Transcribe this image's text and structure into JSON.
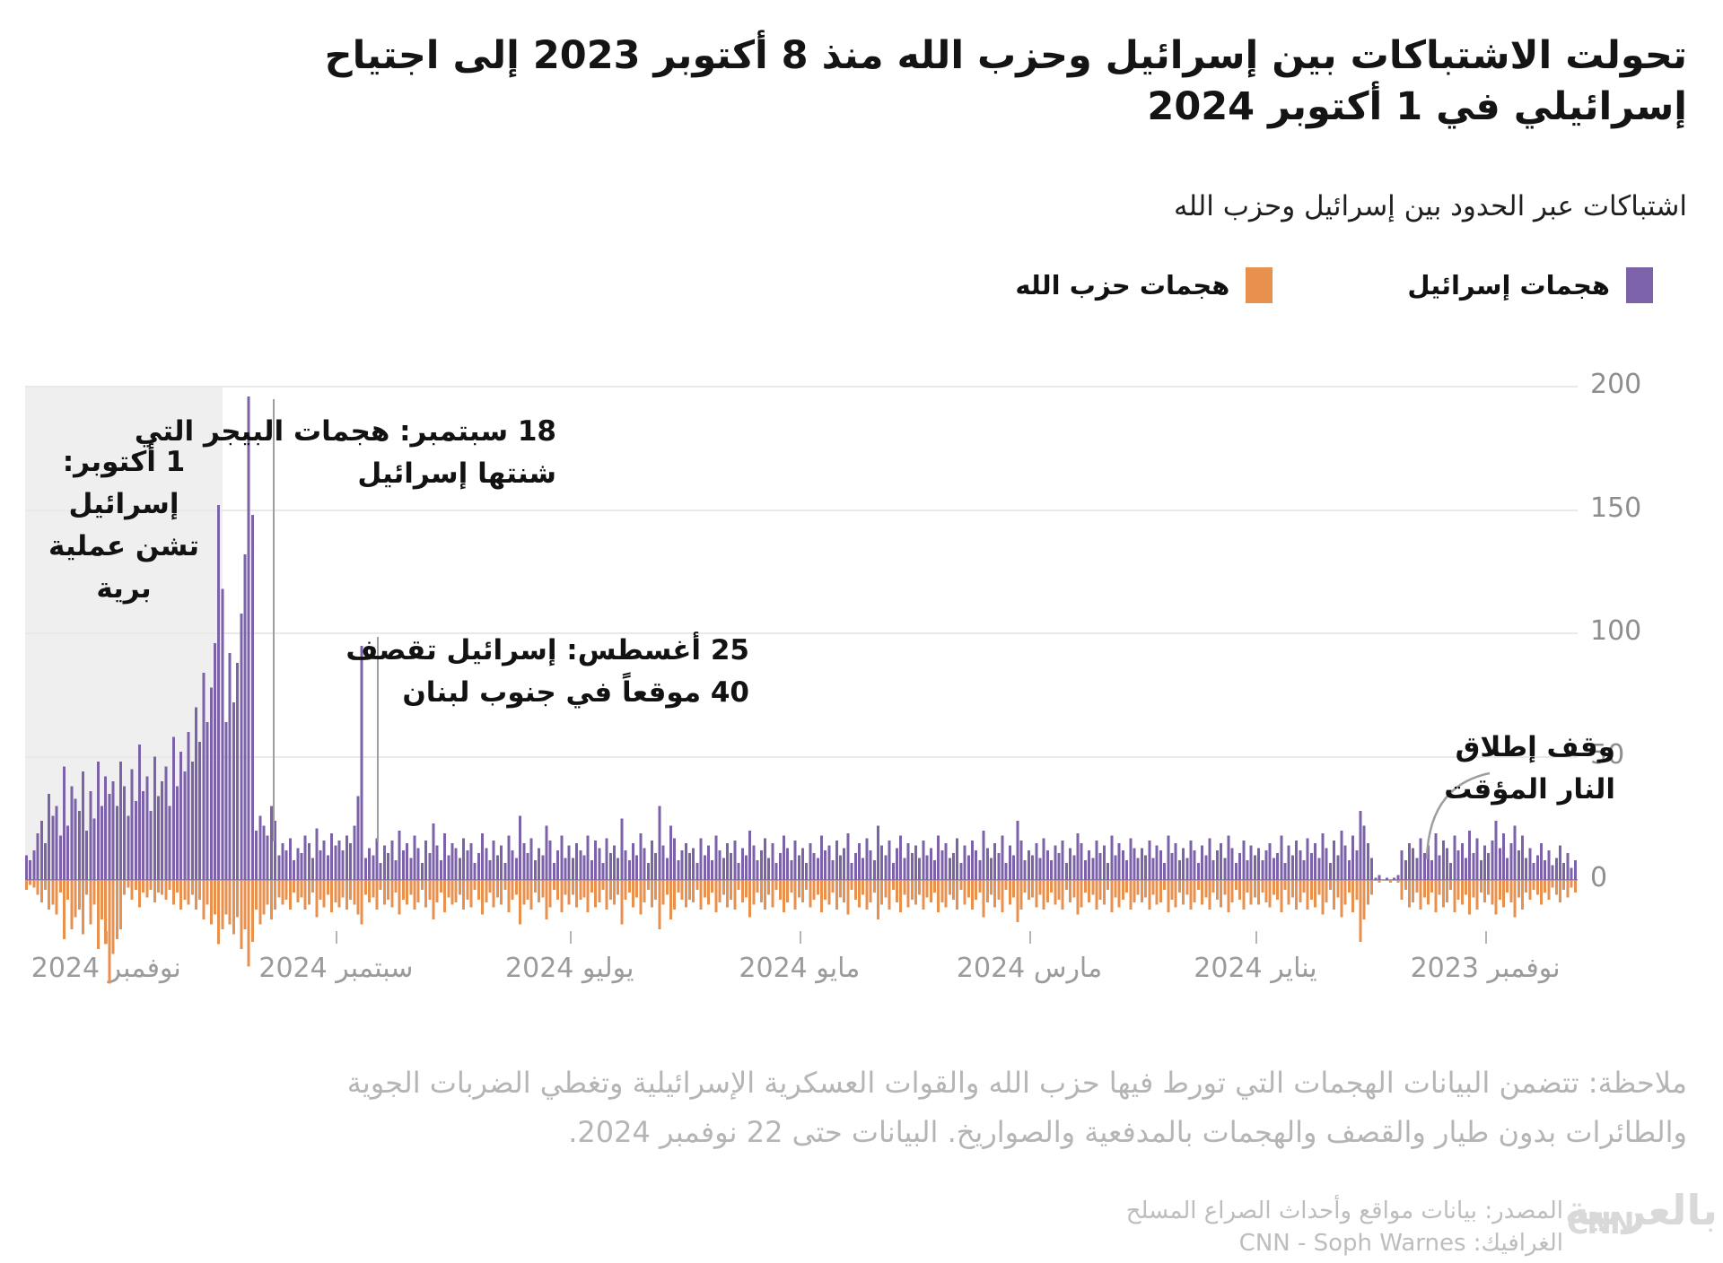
{
  "header": {
    "title_line1": "تحولت الاشتباكات بين إسرائيل وحزب الله منذ 8 أكتوبر 2023 إلى اجتياح",
    "title_line2": "إسرائيلي في 1 أكتوبر 2024",
    "subtitle": "اشتباكات عبر الحدود بين إسرائيل وحزب الله"
  },
  "legend": {
    "israel_label": "هجمات إسرائيل",
    "israel_color": "#7C62A8",
    "hezbollah_label": "هجمات حزب الله",
    "hezbollah_color": "#E8914E"
  },
  "annotations": {
    "ground_op": {
      "line1": "1 أكتوبر:",
      "line2": "إسرائيل",
      "line3": "تشن عملية",
      "line4": "برية"
    },
    "pager": {
      "line1": "18 سبتمبر: هجمات البيجر التي",
      "line2": "شنتها إسرائيل"
    },
    "august": {
      "line1": "25 أغسطس: إسرائيل تقصف",
      "line2": "40 موقعاً في جنوب لبنان"
    },
    "ceasefire": {
      "line1": "وقف إطلاق",
      "line2": "النار المؤقت"
    }
  },
  "y_axis": {
    "ticks": [
      200,
      150,
      100,
      50,
      0
    ]
  },
  "x_axis": {
    "ticks": [
      {
        "label": "نوفمبر 2024",
        "day": 390
      },
      {
        "label": "سبتمبر 2024",
        "day": 329
      },
      {
        "label": "يوليو 2024",
        "day": 267
      },
      {
        "label": "مايو 2024",
        "day": 206
      },
      {
        "label": "مارس 2024",
        "day": 145
      },
      {
        "label": "يناير 2024",
        "day": 85
      },
      {
        "label": "نوفمبر 2023",
        "day": 24
      }
    ]
  },
  "note": {
    "line1": "ملاحظة: تتضمن البيانات الهجمات التي تورط فيها حزب الله والقوات العسكرية الإسرائيلية وتغطي الضربات الجوية",
    "line2": "والطائرات بدون طيار والقصف والهجمات بالمدفعية والصواريخ. البيانات حتى 22 نوفمبر 2024."
  },
  "source": {
    "line1": "المصدر: بيانات مواقع وأحداث الصراع المسلح",
    "line2": "الغرافيك: CNN - Soph Warnes"
  },
  "logo": {
    "arabic": "بالعربية",
    "cnn": "CNN"
  },
  "chart_data": {
    "type": "bar",
    "title": "تحولت الاشتباكات بين إسرائيل وحزب الله منذ 8 أكتوبر 2023 إلى اجتياح إسرائيلي في 1 أكتوبر 2024",
    "subtitle": "اشتباكات عبر الحدود بين إسرائيل وحزب الله",
    "x_desc": "daily attack counts, day 0 = 8 Oct 2023 (plotted at right edge), last day = 22 Nov 2024 (left edge); time flows right-to-left",
    "ylim": [
      -50,
      200
    ],
    "gridlines": [
      0,
      50,
      100,
      150,
      200
    ],
    "legend_position": "top-right",
    "mirrored": "israel plotted upward, hezbollah plotted downward from zero line",
    "series": [
      {
        "name": "هجمات إسرائيل",
        "color": "#7C62A8",
        "values": [
          8,
          5,
          11,
          7,
          14,
          9,
          6,
          12,
          8,
          15,
          10,
          7,
          13,
          9,
          18,
          12,
          22,
          15,
          9,
          19,
          13,
          24,
          16,
          11,
          14,
          8,
          17,
          11,
          20,
          9,
          15,
          12,
          18,
          7,
          13,
          16,
          10,
          19,
          8,
          14,
          11,
          17,
          9,
          13,
          15,
          8,
          12,
          2,
          1,
          0,
          1,
          0,
          2,
          1,
          9,
          15,
          22,
          28,
          12,
          18,
          8,
          14,
          20,
          10,
          16,
          7,
          13,
          19,
          9,
          15,
          11,
          17,
          8,
          12,
          16,
          10,
          14,
          7,
          18,
          11,
          9,
          15,
          12,
          8,
          13,
          10,
          14,
          8,
          16,
          11,
          7,
          13,
          18,
          9,
          15,
          12,
          8,
          17,
          10,
          14,
          7,
          12,
          16,
          9,
          13,
          8,
          15,
          11,
          18,
          7,
          12,
          14,
          9,
          16,
          10,
          13,
          9,
          13,
          17,
          8,
          12,
          15,
          10,
          18,
          7,
          14,
          11,
          16,
          9,
          12,
          8,
          15,
          19,
          10,
          13,
          7,
          16,
          11,
          14,
          8,
          12,
          17,
          9,
          15,
          10,
          12,
          8,
          16,
          24,
          10,
          14,
          7,
          18,
          11,
          15,
          9,
          13,
          20,
          8,
          12,
          16,
          10,
          14,
          7,
          17,
          11,
          9,
          15,
          12,
          18,
          8,
          13,
          10,
          16,
          9,
          14,
          11,
          15,
          9,
          18,
          13,
          7,
          16,
          10,
          14,
          22,
          8,
          12,
          17,
          9,
          15,
          11,
          7,
          19,
          13,
          10,
          16,
          8,
          14,
          12,
          18,
          9,
          11,
          15,
          7,
          13,
          10,
          16,
          8,
          13,
          18,
          11,
          7,
          15,
          9,
          17,
          12,
          8,
          14,
          20,
          10,
          13,
          7,
          16,
          11,
          15,
          9,
          12,
          18,
          8,
          14,
          10,
          17,
          7,
          13,
          11,
          15,
          12,
          8,
          17,
          22,
          9,
          14,
          30,
          11,
          16,
          7,
          13,
          19,
          10,
          15,
          8,
          12,
          25,
          9,
          14,
          11,
          17,
          7,
          13,
          16,
          8,
          18,
          10,
          12,
          15,
          9,
          14,
          9,
          18,
          12,
          7,
          16,
          22,
          10,
          13,
          8,
          17,
          11,
          15,
          26,
          9,
          12,
          18,
          7,
          14,
          10,
          16,
          8,
          13,
          19,
          11,
          7,
          15,
          12,
          17,
          9,
          13,
          15,
          10,
          19,
          8,
          14,
          23,
          11,
          16,
          7,
          13,
          18,
          9,
          15,
          12,
          20,
          8,
          16,
          11,
          14,
          7,
          17,
          10,
          13,
          9,
          95,
          34,
          22,
          15,
          18,
          12,
          16,
          14,
          19,
          10,
          16,
          12,
          21,
          9,
          15,
          18,
          11,
          13,
          8,
          17,
          12,
          15,
          10,
          24,
          30,
          18,
          22,
          26,
          20,
          148,
          196,
          132,
          108,
          88,
          72,
          92,
          64,
          118,
          152,
          96,
          78,
          64,
          84,
          56,
          70,
          48,
          60,
          44,
          52,
          38,
          58,
          30,
          46,
          40,
          34,
          50,
          28,
          42,
          36,
          55,
          32,
          45,
          26,
          38,
          48,
          30,
          40,
          35,
          42,
          30,
          48,
          25,
          36,
          20,
          44,
          28,
          33,
          38,
          22,
          46,
          18,
          30,
          26,
          35,
          15,
          24,
          19,
          12,
          8,
          10
        ]
      },
      {
        "name": "هجمات حزب الله",
        "color": "#E8914E",
        "values": [
          5,
          3,
          7,
          4,
          9,
          6,
          3,
          8,
          5,
          10,
          6,
          4,
          8,
          5,
          12,
          7,
          15,
          9,
          5,
          11,
          8,
          14,
          10,
          6,
          9,
          5,
          12,
          7,
          14,
          6,
          10,
          8,
          13,
          4,
          9,
          11,
          6,
          13,
          5,
          10,
          7,
          12,
          5,
          9,
          11,
          4,
          8,
          1,
          0,
          1,
          0,
          0,
          1,
          0,
          6,
          10,
          16,
          25,
          8,
          13,
          5,
          10,
          15,
          7,
          12,
          4,
          9,
          14,
          6,
          11,
          8,
          12,
          5,
          9,
          12,
          7,
          10,
          4,
          13,
          8,
          6,
          11,
          9,
          5,
          10,
          7,
          10,
          5,
          12,
          8,
          4,
          9,
          13,
          6,
          11,
          8,
          5,
          12,
          7,
          10,
          4,
          9,
          12,
          6,
          10,
          5,
          11,
          8,
          13,
          4,
          9,
          10,
          6,
          12,
          7,
          9,
          6,
          9,
          12,
          5,
          8,
          11,
          7,
          13,
          4,
          10,
          8,
          12,
          6,
          9,
          5,
          11,
          14,
          7,
          9,
          4,
          12,
          8,
          10,
          5,
          9,
          12,
          6,
          11,
          7,
          8,
          5,
          12,
          17,
          7,
          10,
          4,
          13,
          8,
          11,
          6,
          9,
          15,
          5,
          8,
          12,
          7,
          10,
          4,
          12,
          8,
          6,
          11,
          9,
          13,
          5,
          9,
          7,
          12,
          6,
          10,
          8,
          11,
          6,
          13,
          9,
          4,
          12,
          7,
          10,
          16,
          5,
          9,
          12,
          6,
          11,
          8,
          4,
          14,
          9,
          7,
          12,
          5,
          10,
          8,
          13,
          6,
          8,
          11,
          4,
          9,
          7,
          12,
          5,
          9,
          13,
          8,
          4,
          11,
          6,
          12,
          9,
          5,
          10,
          15,
          7,
          9,
          4,
          12,
          8,
          11,
          6,
          9,
          13,
          5,
          10,
          7,
          12,
          4,
          9,
          8,
          11,
          8,
          5,
          12,
          16,
          6,
          10,
          20,
          8,
          11,
          4,
          9,
          14,
          7,
          11,
          5,
          8,
          18,
          6,
          10,
          8,
          12,
          4,
          9,
          11,
          5,
          13,
          7,
          8,
          11,
          6,
          10,
          6,
          13,
          8,
          4,
          11,
          16,
          7,
          9,
          5,
          12,
          8,
          10,
          18,
          6,
          8,
          13,
          4,
          10,
          7,
          11,
          5,
          9,
          14,
          8,
          4,
          11,
          8,
          12,
          6,
          9,
          10,
          7,
          13,
          5,
          9,
          16,
          8,
          11,
          4,
          9,
          12,
          6,
          10,
          8,
          14,
          5,
          11,
          8,
          10,
          4,
          12,
          7,
          9,
          6,
          18,
          14,
          10,
          8,
          12,
          7,
          11,
          9,
          13,
          6,
          11,
          8,
          15,
          5,
          10,
          12,
          7,
          9,
          5,
          12,
          8,
          10,
          7,
          12,
          16,
          10,
          14,
          18,
          12,
          25,
          35,
          20,
          28,
          15,
          22,
          18,
          14,
          20,
          26,
          14,
          18,
          10,
          16,
          8,
          12,
          6,
          10,
          8,
          12,
          5,
          10,
          4,
          8,
          6,
          5,
          9,
          4,
          7,
          5,
          11,
          4,
          8,
          3,
          6,
          20,
          24,
          30,
          42,
          26,
          16,
          28,
          10,
          18,
          6,
          22,
          12,
          15,
          20,
          8,
          24,
          5,
          14,
          10,
          12,
          4,
          9,
          6,
          3,
          2,
          4
        ]
      }
    ]
  }
}
